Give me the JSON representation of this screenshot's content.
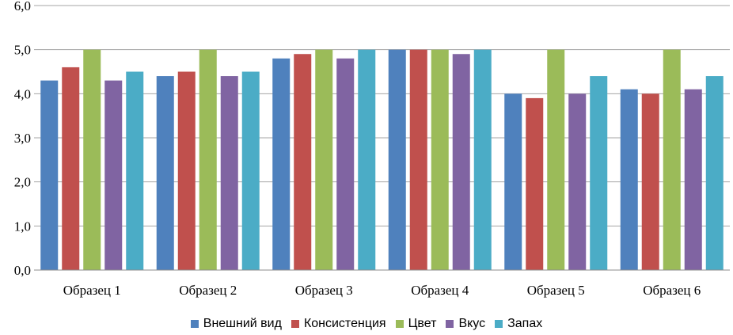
{
  "chart_data": {
    "type": "bar",
    "title": "",
    "xlabel": "",
    "ylabel": "",
    "ylim": [
      0,
      6
    ],
    "yticks": [
      "0,0",
      "1,0",
      "2,0",
      "3,0",
      "4,0",
      "5,0",
      "6,0"
    ],
    "grid": true,
    "legend_position": "bottom",
    "categories": [
      "Образец 1",
      "Образец 2",
      "Образец 3",
      "Образец 4",
      "Образец 5",
      "Образец 6"
    ],
    "series": [
      {
        "name": "Внешний вид",
        "color": "#4F81BD",
        "values": [
          4.3,
          4.4,
          4.8,
          5.0,
          4.0,
          4.1
        ]
      },
      {
        "name": "Консистенция",
        "color": "#C0504D",
        "values": [
          4.6,
          4.5,
          4.9,
          5.0,
          3.9,
          4.0
        ]
      },
      {
        "name": "Цвет",
        "color": "#9BBB59",
        "values": [
          5.0,
          5.0,
          5.0,
          5.0,
          5.0,
          5.0
        ]
      },
      {
        "name": "Вкус",
        "color": "#8064A2",
        "values": [
          4.3,
          4.4,
          4.8,
          4.9,
          4.0,
          4.1
        ]
      },
      {
        "name": "Запах",
        "color": "#4BACC6",
        "values": [
          4.5,
          4.5,
          5.0,
          5.0,
          4.4,
          4.4
        ]
      }
    ]
  }
}
